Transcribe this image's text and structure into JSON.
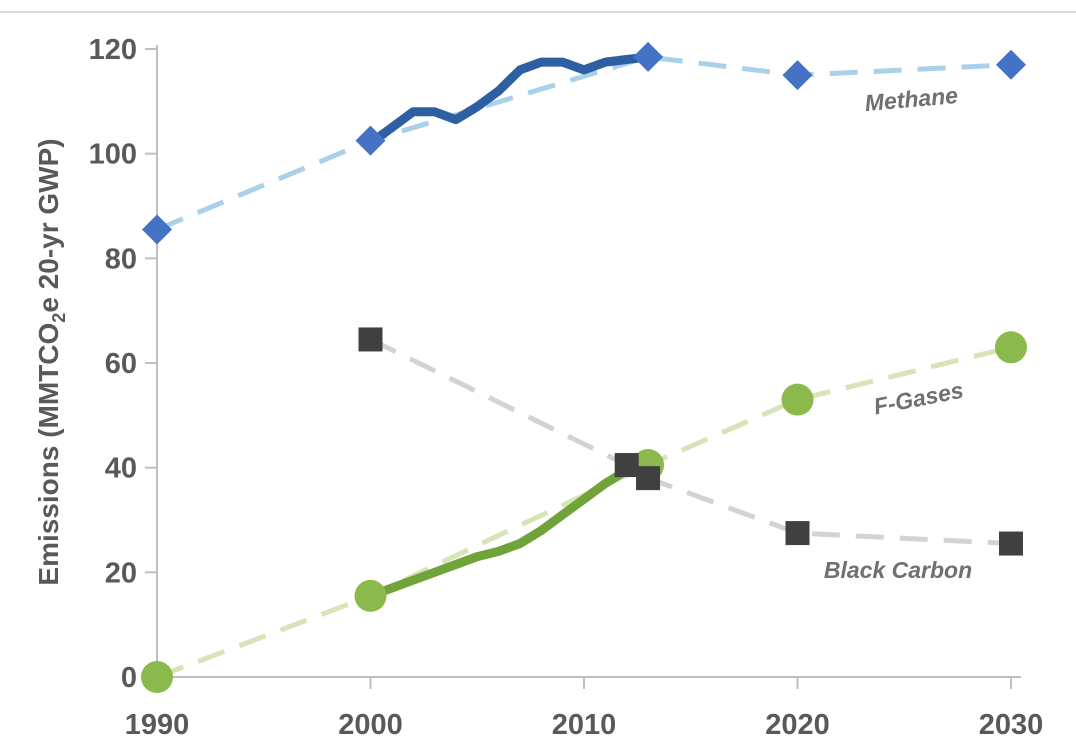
{
  "chart_data": {
    "type": "line",
    "ylabel": {
      "prefix": "Emissions (MMTCO",
      "subscript": "2",
      "suffix": "e 20-yr GWP)"
    },
    "xlabel": "",
    "xlim": [
      1990,
      2030
    ],
    "ylim": [
      0,
      120
    ],
    "x_ticks": [
      "1990",
      "2000",
      "2010",
      "2020",
      "2030"
    ],
    "y_ticks": [
      "0",
      "20",
      "40",
      "60",
      "80",
      "100",
      "120"
    ],
    "grid": false,
    "colors": {
      "methane_actual": "#2e5fa3",
      "methane_marker": "#4472c4",
      "methane_projection": "#a9d2ea",
      "fgases_actual": "#70a33a",
      "fgases_marker": "#8cb94c",
      "fgases_projection": "#d6e4b8",
      "blackcarbon_marker": "#404040",
      "blackcarbon_projection": "#d3d3d3",
      "axis": "#bfbfbf"
    },
    "series": [
      {
        "name": "Methane",
        "marker": "diamond",
        "actual": {
          "x": [
            2000,
            2001,
            2002,
            2003,
            2004,
            2005,
            2006,
            2007,
            2008,
            2009,
            2010,
            2011,
            2012,
            2013
          ],
          "y": [
            102,
            105,
            108,
            108,
            106.5,
            109,
            112,
            116,
            117.5,
            117.5,
            116,
            117.5,
            118,
            118.5
          ]
        },
        "markers": {
          "x": [
            1990,
            2000,
            2013,
            2020,
            2030
          ],
          "y": [
            85.5,
            102.5,
            118.5,
            115,
            117
          ]
        },
        "projection": {
          "x": [
            1990,
            2000,
            2013,
            2020,
            2030
          ],
          "y": [
            85.5,
            102.5,
            118.5,
            115,
            117
          ]
        }
      },
      {
        "name": "F-Gases",
        "marker": "circle",
        "actual": {
          "x": [
            2000,
            2001,
            2002,
            2003,
            2004,
            2005,
            2006,
            2007,
            2008,
            2009,
            2010,
            2011,
            2012,
            2013
          ],
          "y": [
            15.5,
            17,
            18.5,
            20,
            21.5,
            23,
            24,
            25.5,
            28,
            31,
            34,
            37,
            39.5,
            40.5
          ]
        },
        "markers": {
          "x": [
            1990,
            2000,
            2013,
            2020,
            2030
          ],
          "y": [
            0,
            15.5,
            40.5,
            53,
            63
          ]
        },
        "projection": {
          "x": [
            1990,
            2000,
            2013,
            2020,
            2030
          ],
          "y": [
            0,
            15.5,
            40.5,
            53,
            63
          ]
        }
      },
      {
        "name": "Black Carbon",
        "marker": "square",
        "markers": {
          "x": [
            2000,
            2012,
            2013,
            2020,
            2030
          ],
          "y": [
            64.5,
            40.5,
            38,
            27.5,
            25.5
          ]
        },
        "projection": {
          "x": [
            2000,
            2012,
            2013,
            2020,
            2030
          ],
          "y": [
            64.5,
            40.5,
            38,
            27.5,
            25.5
          ]
        }
      }
    ]
  }
}
